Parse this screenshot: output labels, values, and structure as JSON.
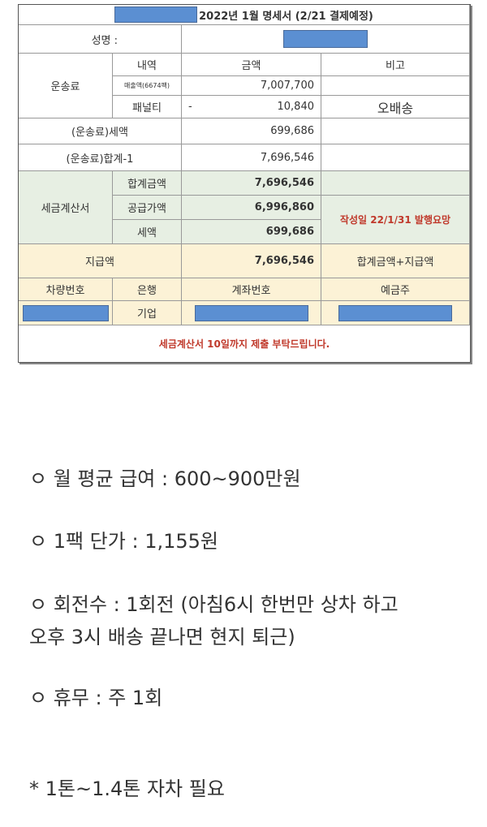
{
  "statement": {
    "title": "2022년 1월 명세서 (2/21 결제예정)",
    "name_label": "성명 :",
    "freight_label": "운송료",
    "headers": {
      "item": "내역",
      "amount": "금액",
      "note": "비고"
    },
    "sales_label": "매출액(6674팩)",
    "sales_amount": "7,007,700",
    "penalty_label": "패널티",
    "penalty_sign": "-",
    "penalty_amount": "10,840",
    "penalty_note": "오배송",
    "tax_label": "(운송료)세액",
    "tax_amount": "699,686",
    "total_label": "(운송료)합계-1",
    "total_amount": "7,696,546",
    "invoice_label": "세금계산서",
    "invoice_total_label": "합계금액",
    "invoice_total": "7,696,546",
    "invoice_supply_label": "공급가액",
    "invoice_supply": "6,996,860",
    "invoice_tax_label": "세액",
    "invoice_tax": "699,686",
    "invoice_note": "작성일 22/1/31 발행요망",
    "payment_label": "지급액",
    "payment_amount": "7,696,546",
    "payment_note": "합계금액+지급액",
    "bank_headers": {
      "vehicle": "차량번호",
      "bank": "은행",
      "account": "계좌번호",
      "holder": "예금주"
    },
    "bank_name": "기업",
    "footer": "세금계산서 10일까지 제출 부탁드립니다."
  },
  "colors": {
    "redaction": "#5b8fd2",
    "green": "#e7efe3",
    "yellow": "#fcf2d6",
    "red_text": "#c0392b"
  },
  "notes": [
    "ㅇ 월 평균 급여 : 600~900만원",
    "ㅇ 1팩 단가 : 1,155원",
    "ㅇ 회전수 : 1회전 (아침6시 한번만 상차 하고",
    "오후 3시 배송 끝나면 현지 퇴근)",
    "ㅇ 휴무 : 주 1회",
    "* 1톤~1.4톤 자차 필요"
  ]
}
